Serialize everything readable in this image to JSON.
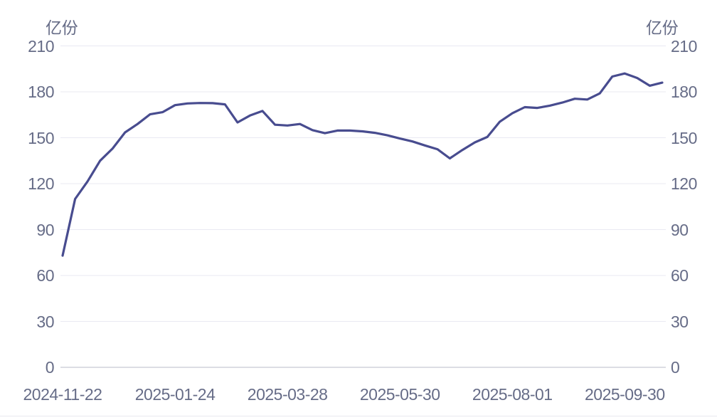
{
  "chart_data": {
    "type": "line",
    "unit_label_left": "亿份",
    "unit_label_right": "亿份",
    "ylim": [
      0,
      210
    ],
    "y_ticks": [
      0,
      30,
      60,
      90,
      120,
      150,
      180,
      210
    ],
    "x_tick_labels": [
      "2024-11-22",
      "2025-01-24",
      "2025-03-28",
      "2025-05-30",
      "2025-08-01",
      "2025-09-30"
    ],
    "x_tick_indices": [
      0,
      9,
      18,
      27,
      36,
      45
    ],
    "grid": true,
    "legend_position": "none",
    "series": [
      {
        "name": "",
        "values": [
          73,
          110,
          121.5,
          135,
          143,
          153.5,
          159,
          165.3,
          166.7,
          171.3,
          172.4,
          172.7,
          172.6,
          171.8,
          160,
          164.5,
          167.5,
          158.5,
          158,
          159,
          155,
          153,
          154.7,
          154.7,
          154.2,
          153.2,
          151.6,
          149.5,
          147.6,
          145,
          142.5,
          136.5,
          142,
          147,
          150.5,
          160.5,
          166,
          170,
          169.5,
          171,
          173,
          175.5,
          175,
          179,
          190,
          192,
          189,
          184,
          186
        ]
      }
    ]
  },
  "colors": {
    "line": "#484c8f",
    "grid_line": "#e9e9f2",
    "zero_line": "#b8bbc9",
    "tick_label": "#666c87",
    "divider": "#e9e9ee",
    "background": "#ffffff"
  }
}
